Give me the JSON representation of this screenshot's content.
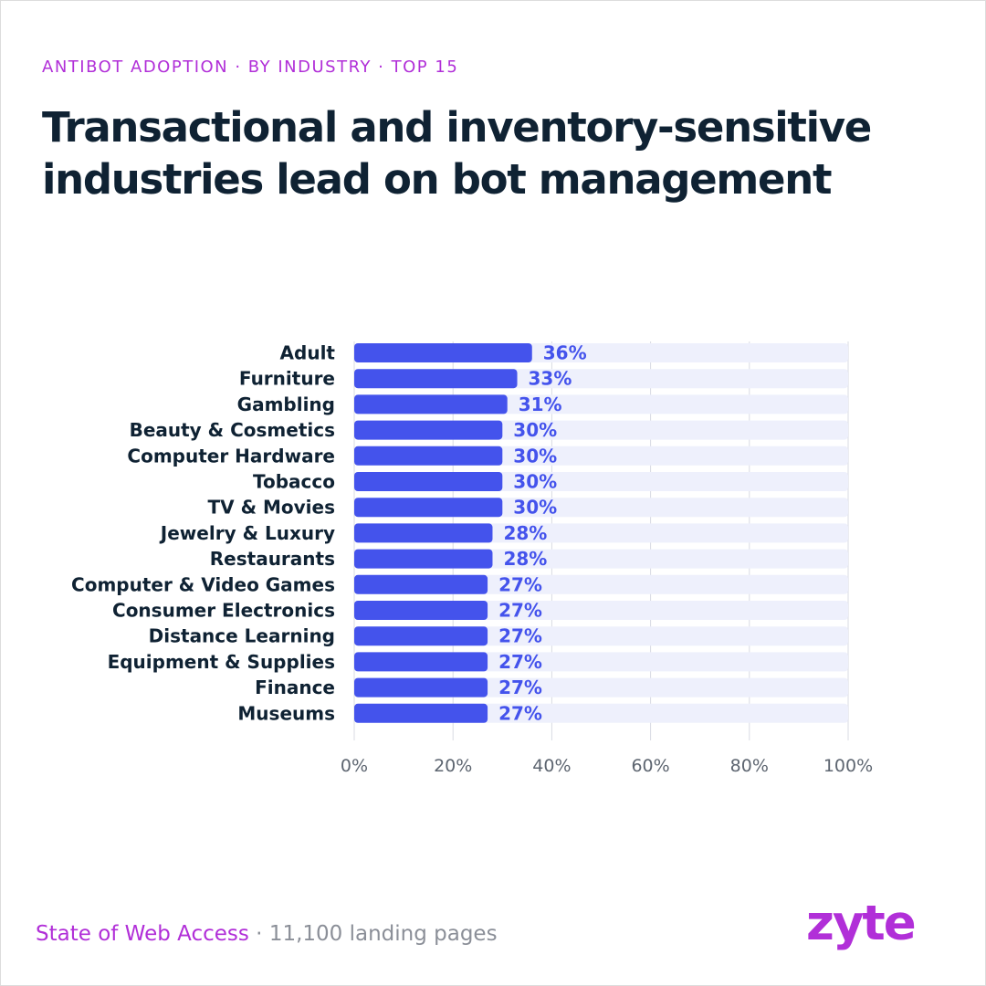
{
  "eyebrow": "ANTIBOT ADOPTION · BY INDUSTRY · TOP 15",
  "headline": "Transactional and inventory-sensitive industries lead on bot management",
  "colors": {
    "accent": "#b12fd8",
    "bar": "#4453ec",
    "track": "#eef0fc",
    "value_label": "#4453ec",
    "gridline": "#d9dbe3",
    "headline": "#0f2233"
  },
  "chart_data": {
    "type": "bar",
    "orientation": "horizontal",
    "categories": [
      "Adult",
      "Furniture",
      "Gambling",
      "Beauty & Cosmetics",
      "Computer Hardware",
      "Tobacco",
      "TV & Movies",
      "Jewelry & Luxury",
      "Restaurants",
      "Computer & Video Games",
      "Consumer Electronics",
      "Distance Learning",
      "Equipment & Supplies",
      "Finance",
      "Museums"
    ],
    "values": [
      36,
      33,
      31,
      30,
      30,
      30,
      30,
      28,
      28,
      27,
      27,
      27,
      27,
      27,
      27
    ],
    "value_labels": [
      "36%",
      "33%",
      "31%",
      "30%",
      "30%",
      "30%",
      "30%",
      "28%",
      "28%",
      "27%",
      "27%",
      "27%",
      "27%",
      "27%",
      "27%"
    ],
    "xlim": [
      0,
      100
    ],
    "xticks": [
      0,
      20,
      40,
      60,
      80,
      100
    ],
    "xtick_labels": [
      "0%",
      "20%",
      "40%",
      "60%",
      "80%",
      "100%"
    ],
    "grid": "vertical",
    "legend": "none"
  },
  "footer": {
    "source_title": "State of Web Access",
    "separator": " · ",
    "source_count": "11,100 landing pages"
  },
  "logo": {
    "text": "zyte"
  }
}
